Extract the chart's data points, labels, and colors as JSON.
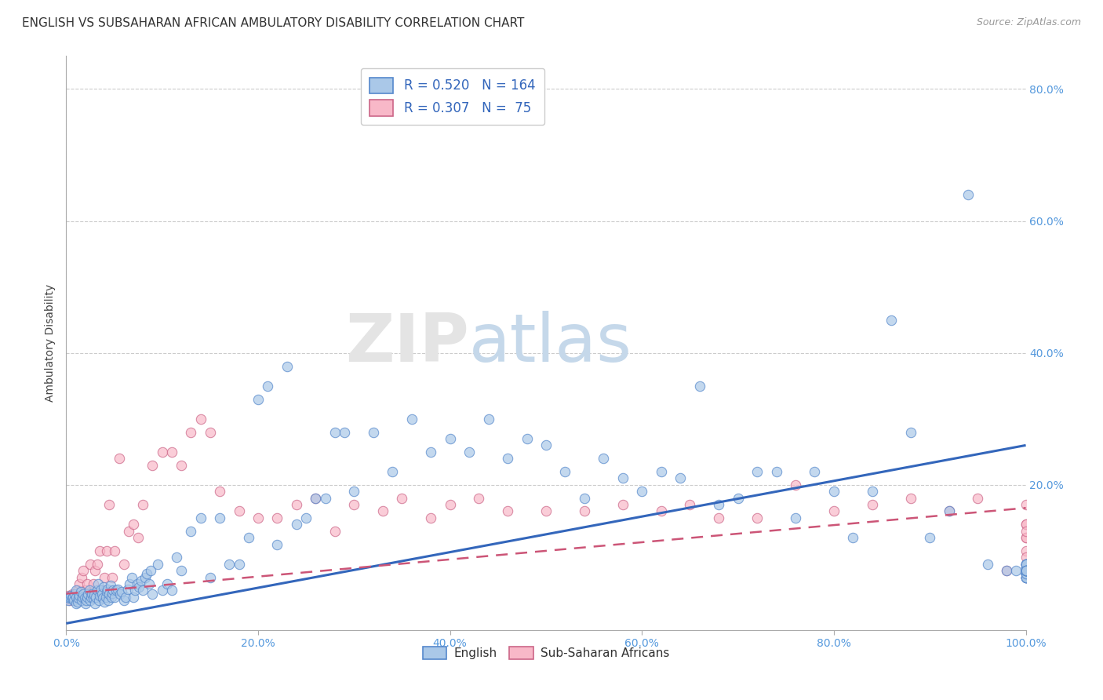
{
  "title": "ENGLISH VS SUBSAHARAN AFRICAN AMBULATORY DISABILITY CORRELATION CHART",
  "source": "Source: ZipAtlas.com",
  "ylabel": "Ambulatory Disability",
  "xlim": [
    0,
    1.0
  ],
  "ylim": [
    -0.02,
    0.85
  ],
  "english_R": 0.52,
  "english_N": 164,
  "subsaharan_R": 0.307,
  "subsaharan_N": 75,
  "english_color": "#aac8e8",
  "english_edge_color": "#5588cc",
  "english_line_color": "#3366bb",
  "subsaharan_color": "#f8b8c8",
  "subsaharan_edge_color": "#cc6688",
  "subsaharan_line_color": "#cc5577",
  "legend_text_color": "#3366bb",
  "right_tick_color": "#5599dd",
  "background_color": "#ffffff",
  "grid_color": "#cccccc",
  "english_scatter_x": [
    0.0,
    0.002,
    0.003,
    0.004,
    0.005,
    0.006,
    0.007,
    0.008,
    0.009,
    0.01,
    0.01,
    0.01,
    0.012,
    0.013,
    0.014,
    0.015,
    0.016,
    0.017,
    0.018,
    0.019,
    0.02,
    0.021,
    0.022,
    0.023,
    0.024,
    0.025,
    0.026,
    0.027,
    0.028,
    0.029,
    0.03,
    0.031,
    0.032,
    0.033,
    0.034,
    0.035,
    0.036,
    0.037,
    0.038,
    0.039,
    0.04,
    0.041,
    0.042,
    0.043,
    0.044,
    0.045,
    0.046,
    0.047,
    0.048,
    0.049,
    0.05,
    0.052,
    0.054,
    0.056,
    0.058,
    0.06,
    0.062,
    0.064,
    0.066,
    0.068,
    0.07,
    0.072,
    0.074,
    0.076,
    0.078,
    0.08,
    0.082,
    0.084,
    0.086,
    0.088,
    0.09,
    0.095,
    0.1,
    0.105,
    0.11,
    0.115,
    0.12,
    0.13,
    0.14,
    0.15,
    0.16,
    0.17,
    0.18,
    0.19,
    0.2,
    0.21,
    0.22,
    0.23,
    0.24,
    0.25,
    0.26,
    0.27,
    0.28,
    0.29,
    0.3,
    0.32,
    0.34,
    0.36,
    0.38,
    0.4,
    0.42,
    0.44,
    0.46,
    0.48,
    0.5,
    0.52,
    0.54,
    0.56,
    0.58,
    0.6,
    0.62,
    0.64,
    0.66,
    0.68,
    0.7,
    0.72,
    0.74,
    0.76,
    0.78,
    0.8,
    0.82,
    0.84,
    0.86,
    0.88,
    0.9,
    0.92,
    0.94,
    0.96,
    0.98,
    0.99,
    1.0,
    1.0,
    1.0,
    1.0,
    1.0,
    1.0,
    1.0,
    1.0,
    1.0,
    1.0,
    1.0,
    1.0,
    1.0,
    1.0,
    1.0,
    1.0,
    1.0,
    1.0,
    1.0,
    1.0,
    1.0,
    1.0,
    1.0,
    1.0,
    1.0,
    1.0,
    1.0,
    1.0,
    1.0,
    1.0,
    1.0,
    1.0,
    1.0,
    1.0
  ],
  "english_scatter_y": [
    0.03,
    0.025,
    0.028,
    0.03,
    0.032,
    0.028,
    0.03,
    0.025,
    0.035,
    0.02,
    0.03,
    0.04,
    0.022,
    0.028,
    0.032,
    0.038,
    0.025,
    0.03,
    0.035,
    0.028,
    0.02,
    0.025,
    0.03,
    0.035,
    0.04,
    0.025,
    0.03,
    0.035,
    0.028,
    0.033,
    0.02,
    0.03,
    0.04,
    0.05,
    0.025,
    0.032,
    0.04,
    0.035,
    0.028,
    0.045,
    0.022,
    0.03,
    0.038,
    0.042,
    0.025,
    0.035,
    0.048,
    0.03,
    0.036,
    0.04,
    0.03,
    0.04,
    0.042,
    0.035,
    0.038,
    0.025,
    0.03,
    0.042,
    0.05,
    0.06,
    0.03,
    0.04,
    0.05,
    0.045,
    0.055,
    0.04,
    0.06,
    0.065,
    0.05,
    0.07,
    0.035,
    0.08,
    0.04,
    0.05,
    0.04,
    0.09,
    0.07,
    0.13,
    0.15,
    0.06,
    0.15,
    0.08,
    0.08,
    0.12,
    0.33,
    0.35,
    0.11,
    0.38,
    0.14,
    0.15,
    0.18,
    0.18,
    0.28,
    0.28,
    0.19,
    0.28,
    0.22,
    0.3,
    0.25,
    0.27,
    0.25,
    0.3,
    0.24,
    0.27,
    0.26,
    0.22,
    0.18,
    0.24,
    0.21,
    0.19,
    0.22,
    0.21,
    0.35,
    0.17,
    0.18,
    0.22,
    0.22,
    0.15,
    0.22,
    0.19,
    0.12,
    0.19,
    0.45,
    0.28,
    0.12,
    0.16,
    0.64,
    0.08,
    0.07,
    0.07,
    0.06,
    0.07,
    0.075,
    0.065,
    0.06,
    0.065,
    0.07,
    0.065,
    0.06,
    0.065,
    0.07,
    0.065,
    0.06,
    0.065,
    0.07,
    0.075,
    0.065,
    0.06,
    0.065,
    0.07,
    0.08,
    0.08,
    0.08,
    0.08,
    0.07,
    0.08,
    0.07,
    0.07,
    0.08,
    0.07,
    0.07,
    0.07,
    0.07,
    0.07
  ],
  "subsaharan_scatter_x": [
    0.0,
    0.002,
    0.004,
    0.006,
    0.008,
    0.01,
    0.012,
    0.014,
    0.016,
    0.018,
    0.02,
    0.022,
    0.025,
    0.028,
    0.03,
    0.032,
    0.035,
    0.038,
    0.04,
    0.042,
    0.045,
    0.048,
    0.05,
    0.055,
    0.06,
    0.065,
    0.07,
    0.075,
    0.08,
    0.09,
    0.1,
    0.11,
    0.12,
    0.13,
    0.14,
    0.15,
    0.16,
    0.18,
    0.2,
    0.22,
    0.24,
    0.26,
    0.28,
    0.3,
    0.33,
    0.35,
    0.38,
    0.4,
    0.43,
    0.46,
    0.5,
    0.54,
    0.58,
    0.62,
    0.65,
    0.68,
    0.72,
    0.76,
    0.8,
    0.84,
    0.88,
    0.92,
    0.95,
    0.98,
    1.0,
    1.0,
    1.0,
    1.0,
    1.0,
    1.0,
    1.0,
    1.0,
    1.0,
    1.0,
    1.0
  ],
  "subsaharan_scatter_y": [
    0.03,
    0.032,
    0.025,
    0.035,
    0.028,
    0.03,
    0.04,
    0.05,
    0.06,
    0.07,
    0.04,
    0.05,
    0.08,
    0.05,
    0.07,
    0.08,
    0.1,
    0.04,
    0.06,
    0.1,
    0.17,
    0.06,
    0.1,
    0.24,
    0.08,
    0.13,
    0.14,
    0.12,
    0.17,
    0.23,
    0.25,
    0.25,
    0.23,
    0.28,
    0.3,
    0.28,
    0.19,
    0.16,
    0.15,
    0.15,
    0.17,
    0.18,
    0.13,
    0.17,
    0.16,
    0.18,
    0.15,
    0.17,
    0.18,
    0.16,
    0.16,
    0.16,
    0.17,
    0.16,
    0.17,
    0.15,
    0.15,
    0.2,
    0.16,
    0.17,
    0.18,
    0.16,
    0.18,
    0.07,
    0.17,
    0.14,
    0.14,
    0.12,
    0.12,
    0.13,
    0.1,
    0.09,
    0.08,
    0.07,
    0.06
  ],
  "english_trend_x": [
    0.0,
    1.0
  ],
  "english_trend_y": [
    -0.01,
    0.26
  ],
  "subsaharan_trend_x": [
    0.0,
    1.0
  ],
  "subsaharan_trend_y": [
    0.035,
    0.165
  ],
  "xtick_vals": [
    0.0,
    0.2,
    0.4,
    0.6,
    0.8,
    1.0
  ],
  "xtick_labels": [
    "0.0%",
    "20.0%",
    "40.0%",
    "60.0%",
    "80.0%",
    "100.0%"
  ],
  "ytick_vals": [
    0.2,
    0.4,
    0.6,
    0.8
  ],
  "ytick_labels": [
    "20.0%",
    "40.0%",
    "60.0%",
    "80.0%"
  ],
  "title_fontsize": 11,
  "label_fontsize": 10,
  "tick_fontsize": 10,
  "source_fontsize": 9
}
